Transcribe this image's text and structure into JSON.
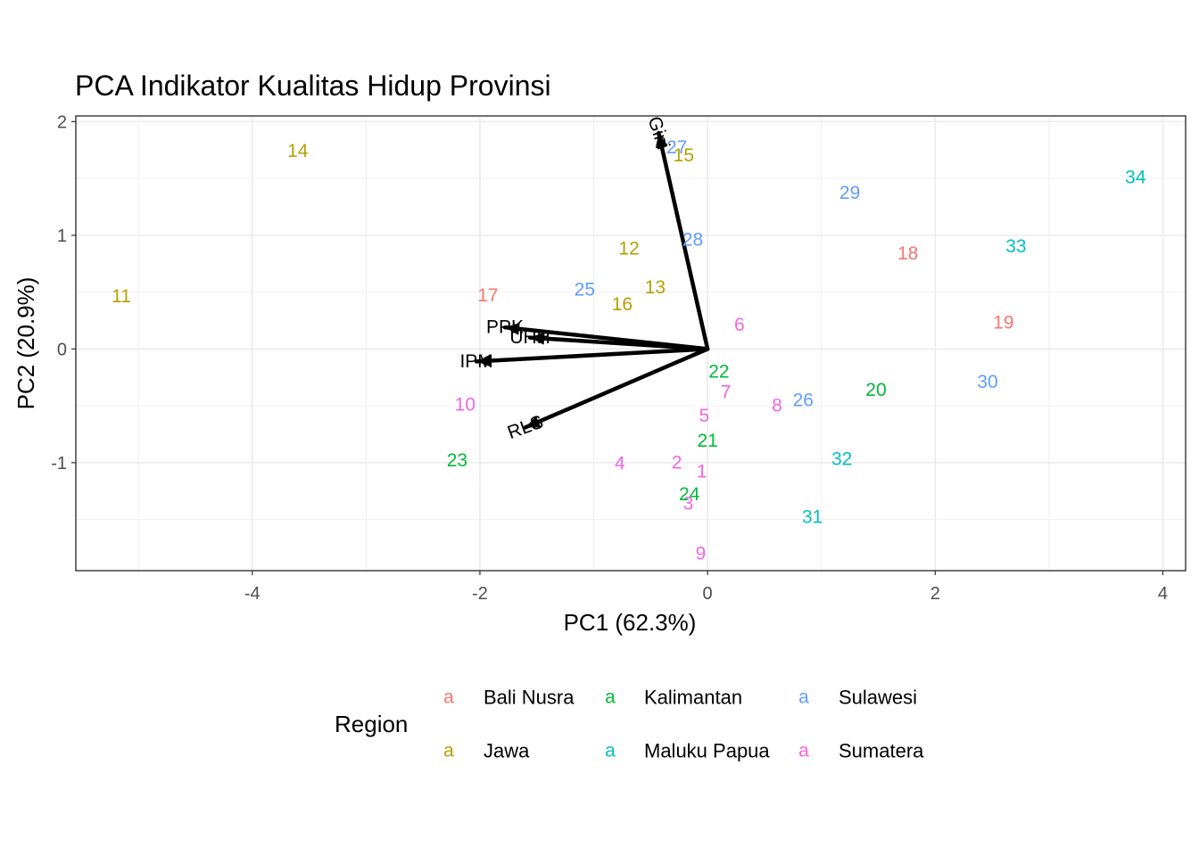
{
  "chart_data": {
    "type": "scatter",
    "title": "PCA Indikator Kualitas Hidup Provinsi",
    "xlabel": "PC1 (62.3%)",
    "ylabel": "PC2 (20.9%)",
    "xlim": [
      -5.55,
      4.2
    ],
    "ylim": [
      -1.95,
      2.05
    ],
    "x_ticks": [
      -4,
      -2,
      0,
      2,
      4
    ],
    "y_ticks": [
      -1,
      0,
      1,
      2
    ],
    "grid": true,
    "legend": {
      "title": "Region",
      "position": "bottom",
      "key_glyph": "a",
      "entries": [
        {
          "name": "Bali Nusra",
          "color": "#F8766D"
        },
        {
          "name": "Jawa",
          "color": "#B79F00"
        },
        {
          "name": "Kalimantan",
          "color": "#00BA38"
        },
        {
          "name": "Maluku Papua",
          "color": "#00BFC4"
        },
        {
          "name": "Sulawesi",
          "color": "#619CFF"
        },
        {
          "name": "Sumatera",
          "color": "#F564E3"
        }
      ]
    },
    "points": [
      {
        "label": "1",
        "x": -0.05,
        "y": -1.08,
        "region": "Sumatera"
      },
      {
        "label": "2",
        "x": -0.27,
        "y": -1.0,
        "region": "Sumatera"
      },
      {
        "label": "3",
        "x": -0.17,
        "y": -1.36,
        "region": "Sumatera"
      },
      {
        "label": "4",
        "x": -0.77,
        "y": -1.01,
        "region": "Sumatera"
      },
      {
        "label": "5",
        "x": -0.03,
        "y": -0.59,
        "region": "Sumatera"
      },
      {
        "label": "6",
        "x": 0.28,
        "y": 0.21,
        "region": "Sumatera"
      },
      {
        "label": "7",
        "x": 0.16,
        "y": -0.38,
        "region": "Sumatera"
      },
      {
        "label": "8",
        "x": 0.61,
        "y": -0.5,
        "region": "Sumatera"
      },
      {
        "label": "9",
        "x": -0.06,
        "y": -1.8,
        "region": "Sumatera"
      },
      {
        "label": "10",
        "x": -2.13,
        "y": -0.49,
        "region": "Sumatera"
      },
      {
        "label": "11",
        "x": -5.15,
        "y": 0.46,
        "region": "Jawa"
      },
      {
        "label": "12",
        "x": -0.69,
        "y": 0.88,
        "region": "Jawa"
      },
      {
        "label": "13",
        "x": -0.46,
        "y": 0.54,
        "region": "Jawa"
      },
      {
        "label": "14",
        "x": -3.6,
        "y": 1.74,
        "region": "Jawa"
      },
      {
        "label": "15",
        "x": -0.21,
        "y": 1.7,
        "region": "Jawa"
      },
      {
        "label": "16",
        "x": -0.75,
        "y": 0.39,
        "region": "Jawa"
      },
      {
        "label": "17",
        "x": -1.93,
        "y": 0.47,
        "region": "Bali Nusra"
      },
      {
        "label": "18",
        "x": 1.76,
        "y": 0.84,
        "region": "Bali Nusra"
      },
      {
        "label": "19",
        "x": 2.6,
        "y": 0.23,
        "region": "Bali Nusra"
      },
      {
        "label": "20",
        "x": 1.48,
        "y": -0.36,
        "region": "Kalimantan"
      },
      {
        "label": "21",
        "x": 0.0,
        "y": -0.81,
        "region": "Kalimantan"
      },
      {
        "label": "22",
        "x": 0.1,
        "y": -0.2,
        "region": "Kalimantan"
      },
      {
        "label": "23",
        "x": -2.2,
        "y": -0.98,
        "region": "Kalimantan"
      },
      {
        "label": "24",
        "x": -0.16,
        "y": -1.28,
        "region": "Kalimantan"
      },
      {
        "label": "25",
        "x": -1.08,
        "y": 0.52,
        "region": "Sulawesi"
      },
      {
        "label": "26",
        "x": 0.84,
        "y": -0.45,
        "region": "Sulawesi"
      },
      {
        "label": "27",
        "x": -0.27,
        "y": 1.77,
        "region": "Sulawesi"
      },
      {
        "label": "28",
        "x": -0.13,
        "y": 0.96,
        "region": "Sulawesi"
      },
      {
        "label": "29",
        "x": 1.25,
        "y": 1.37,
        "region": "Sulawesi"
      },
      {
        "label": "30",
        "x": 2.46,
        "y": -0.29,
        "region": "Sulawesi"
      },
      {
        "label": "31",
        "x": 0.92,
        "y": -1.48,
        "region": "Maluku Papua"
      },
      {
        "label": "32",
        "x": 1.18,
        "y": -0.97,
        "region": "Maluku Papua"
      },
      {
        "label": "33",
        "x": 2.71,
        "y": 0.9,
        "region": "Maluku Papua"
      },
      {
        "label": "34",
        "x": 3.76,
        "y": 1.51,
        "region": "Maluku Papua"
      }
    ],
    "loadings": [
      {
        "label": "Gini",
        "x": -0.43,
        "y": 1.9,
        "label_angle": 72
      },
      {
        "label": "PPK",
        "x": -1.78,
        "y": 0.19,
        "label_angle": 0
      },
      {
        "label": "UHH",
        "x": -1.56,
        "y": 0.1,
        "label_angle": 0
      },
      {
        "label": "IPM",
        "x": -2.03,
        "y": -0.11,
        "label_angle": 0
      },
      {
        "label": "RLS",
        "x": -1.6,
        "y": -0.69,
        "label_angle": -20
      }
    ]
  }
}
